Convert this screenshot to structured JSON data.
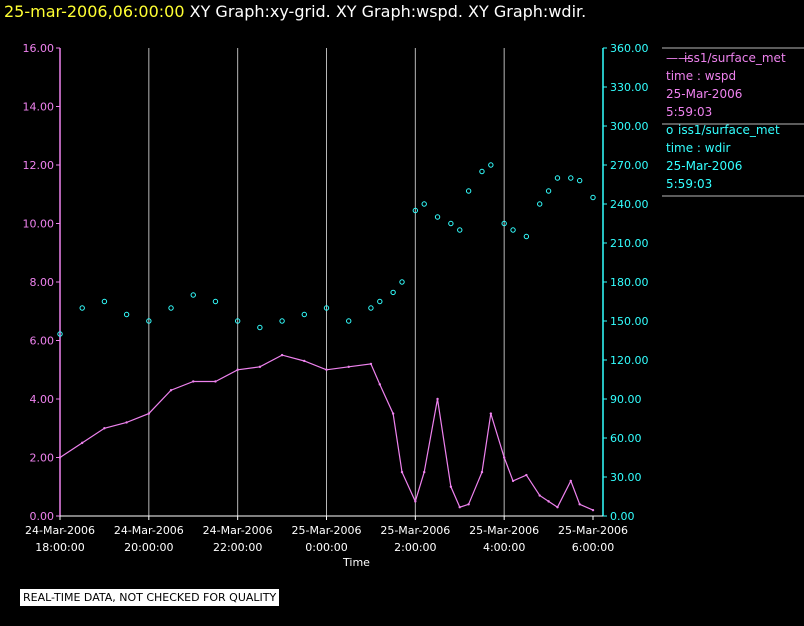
{
  "header": {
    "timestamp": "25-mar-2006,06:00:00",
    "graphs": "XY Graph:xy-grid.  XY Graph:wspd.  XY Graph:wdir."
  },
  "disclaimer": "REAL-TIME DATA, NOT CHECKED FOR QUALITY",
  "colors": {
    "wspd": "#ee82ee",
    "wdir": "#33ffff",
    "grid": "#b8b8b8",
    "title": "#ffff33"
  },
  "chart_data": {
    "type": "line",
    "xlabel": "Time",
    "x_ticks": [
      {
        "l1": "24-Mar-2006",
        "l2": "18:00:00",
        "h": 0
      },
      {
        "l1": "24-Mar-2006",
        "l2": "20:00:00",
        "h": 2
      },
      {
        "l1": "24-Mar-2006",
        "l2": "22:00:00",
        "h": 4
      },
      {
        "l1": "25-Mar-2006",
        "l2": "0:00:00",
        "h": 6
      },
      {
        "l1": "25-Mar-2006",
        "l2": "2:00:00",
        "h": 8
      },
      {
        "l1": "25-Mar-2006",
        "l2": "4:00:00",
        "h": 10
      },
      {
        "l1": "25-Mar-2006",
        "l2": "6:00:00",
        "h": 12
      }
    ],
    "xlim_hours": [
      0,
      12
    ],
    "y_left": {
      "ylim": [
        0,
        16
      ],
      "ticks": [
        "0.00",
        "2.00",
        "4.00",
        "6.00",
        "8.00",
        "10.00",
        "12.00",
        "14.00",
        "16.00"
      ]
    },
    "y_right": {
      "ylim": [
        0,
        360
      ],
      "ticks": [
        "0.00",
        "30.00",
        "60.00",
        "90.00",
        "120.00",
        "150.00",
        "180.00",
        "210.00",
        "240.00",
        "270.00",
        "300.00",
        "330.00",
        "360.00"
      ]
    },
    "legend": [
      {
        "marker": "——",
        "name": "iss1/surface_met",
        "field": "time : wspd",
        "date": "25-Mar-2006",
        "time": "5:59:03"
      },
      {
        "marker": "o",
        "name": "iss1/surface_met",
        "field": "time : wdir",
        "date": "25-Mar-2006",
        "time": "5:59:03"
      }
    ],
    "series": [
      {
        "name": "wspd",
        "axis": "left",
        "style": "line",
        "x_hours": [
          0,
          0.5,
          1,
          1.5,
          2,
          2.5,
          3,
          3.5,
          4,
          4.5,
          5,
          5.5,
          6,
          6.5,
          7,
          7.2,
          7.5,
          7.7,
          8,
          8.2,
          8.5,
          8.8,
          9,
          9.2,
          9.5,
          9.7,
          10,
          10.2,
          10.5,
          10.8,
          11,
          11.2,
          11.5,
          11.7,
          12
        ],
        "values": [
          2,
          2.5,
          3,
          3.2,
          3.5,
          4.3,
          4.6,
          4.6,
          5,
          5.1,
          5.5,
          5.3,
          5,
          5.1,
          5.2,
          4.5,
          3.5,
          1.5,
          0.5,
          1.5,
          4,
          1,
          0.3,
          0.4,
          1.5,
          3.5,
          2,
          1.2,
          1.4,
          0.7,
          0.5,
          0.3,
          1.2,
          0.4,
          0.2
        ]
      },
      {
        "name": "wdir",
        "axis": "right",
        "style": "scatter",
        "x_hours": [
          0,
          0.5,
          1,
          1.5,
          2,
          2.5,
          3,
          3.5,
          4,
          4.5,
          5,
          5.5,
          6,
          6.5,
          7,
          7.2,
          7.5,
          7.7,
          8,
          8.2,
          8.5,
          8.8,
          9,
          9.2,
          9.5,
          9.7,
          10,
          10.2,
          10.5,
          10.8,
          11,
          11.2,
          11.5,
          11.7,
          12
        ],
        "values": [
          140,
          160,
          165,
          155,
          150,
          160,
          170,
          165,
          150,
          145,
          150,
          155,
          160,
          150,
          160,
          165,
          172,
          180,
          235,
          240,
          230,
          225,
          220,
          250,
          265,
          270,
          225,
          220,
          215,
          240,
          250,
          260,
          260,
          258,
          245
        ]
      }
    ]
  }
}
